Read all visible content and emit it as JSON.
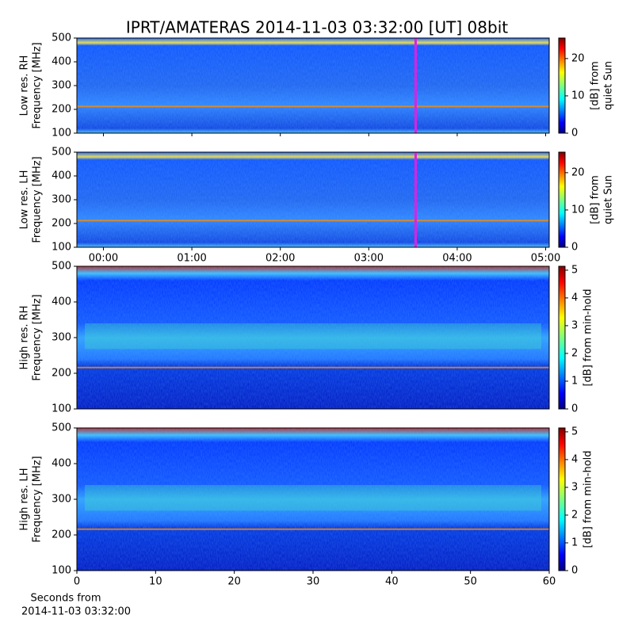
{
  "title": "IPRT/AMATERAS 2014-11-03 03:32:00 [UT]   08bit",
  "chart_data": [
    {
      "type": "spectrogram",
      "ylabel": [
        "Low res. RH",
        "Frequency [MHz]"
      ],
      "ylim": [
        100,
        500
      ],
      "yticks": [
        100,
        200,
        300,
        400,
        500
      ],
      "xlim": [
        -0.3,
        5.04
      ],
      "xticks": [
        0,
        1,
        2,
        3,
        4,
        5
      ],
      "marker_x": 3.53,
      "marker_color": "#e020e0",
      "colorbar": {
        "label": [
          "[dB] from",
          "quiet Sun"
        ],
        "lim": [
          0,
          25.5
        ],
        "ticks": [
          0,
          10,
          20
        ]
      }
    },
    {
      "type": "spectrogram",
      "ylabel": [
        "Low res. LH",
        "Frequency [MHz]"
      ],
      "ylim": [
        100,
        500
      ],
      "yticks": [
        100,
        200,
        300,
        400,
        500
      ],
      "xlim": [
        -0.3,
        5.04
      ],
      "xticks": [
        {
          "value": 0,
          "label": "00:00"
        },
        {
          "value": 1,
          "label": "01:00"
        },
        {
          "value": 2,
          "label": "02:00"
        },
        {
          "value": 3,
          "label": "03:00"
        },
        {
          "value": 4,
          "label": "04:00"
        },
        {
          "value": 5,
          "label": "05:00"
        }
      ],
      "marker_x": 3.53,
      "marker_color": "#e020e0",
      "colorbar": {
        "label": [
          "[dB] from",
          "quiet Sun"
        ],
        "lim": [
          0,
          25.5
        ],
        "ticks": [
          0,
          10,
          20
        ]
      }
    },
    {
      "type": "spectrogram",
      "ylabel": [
        "High res. RH",
        "Frequency [MHz]"
      ],
      "ylim": [
        100,
        500
      ],
      "yticks": [
        100,
        200,
        300,
        400,
        500
      ],
      "xlim": [
        0,
        60
      ],
      "colorbar": {
        "label": [
          "[dB] from min-hold"
        ],
        "lim": [
          0,
          5.14
        ],
        "ticks": [
          0,
          1,
          2,
          3,
          4,
          5
        ]
      }
    },
    {
      "type": "spectrogram",
      "ylabel": [
        "High res. LH",
        "Frequency [MHz]"
      ],
      "ylim": [
        100,
        500
      ],
      "yticks": [
        100,
        200,
        300,
        400,
        500
      ],
      "xlim": [
        0,
        60
      ],
      "xticks": [
        0,
        10,
        20,
        30,
        40,
        50,
        60
      ],
      "xlabel": [
        "Seconds from",
        "2014-11-03 03:32:00"
      ],
      "colorbar": {
        "label": [
          "[dB] from min-hold"
        ],
        "lim": [
          0,
          5.14
        ],
        "ticks": [
          0,
          1,
          2,
          3,
          4,
          5
        ]
      }
    }
  ]
}
